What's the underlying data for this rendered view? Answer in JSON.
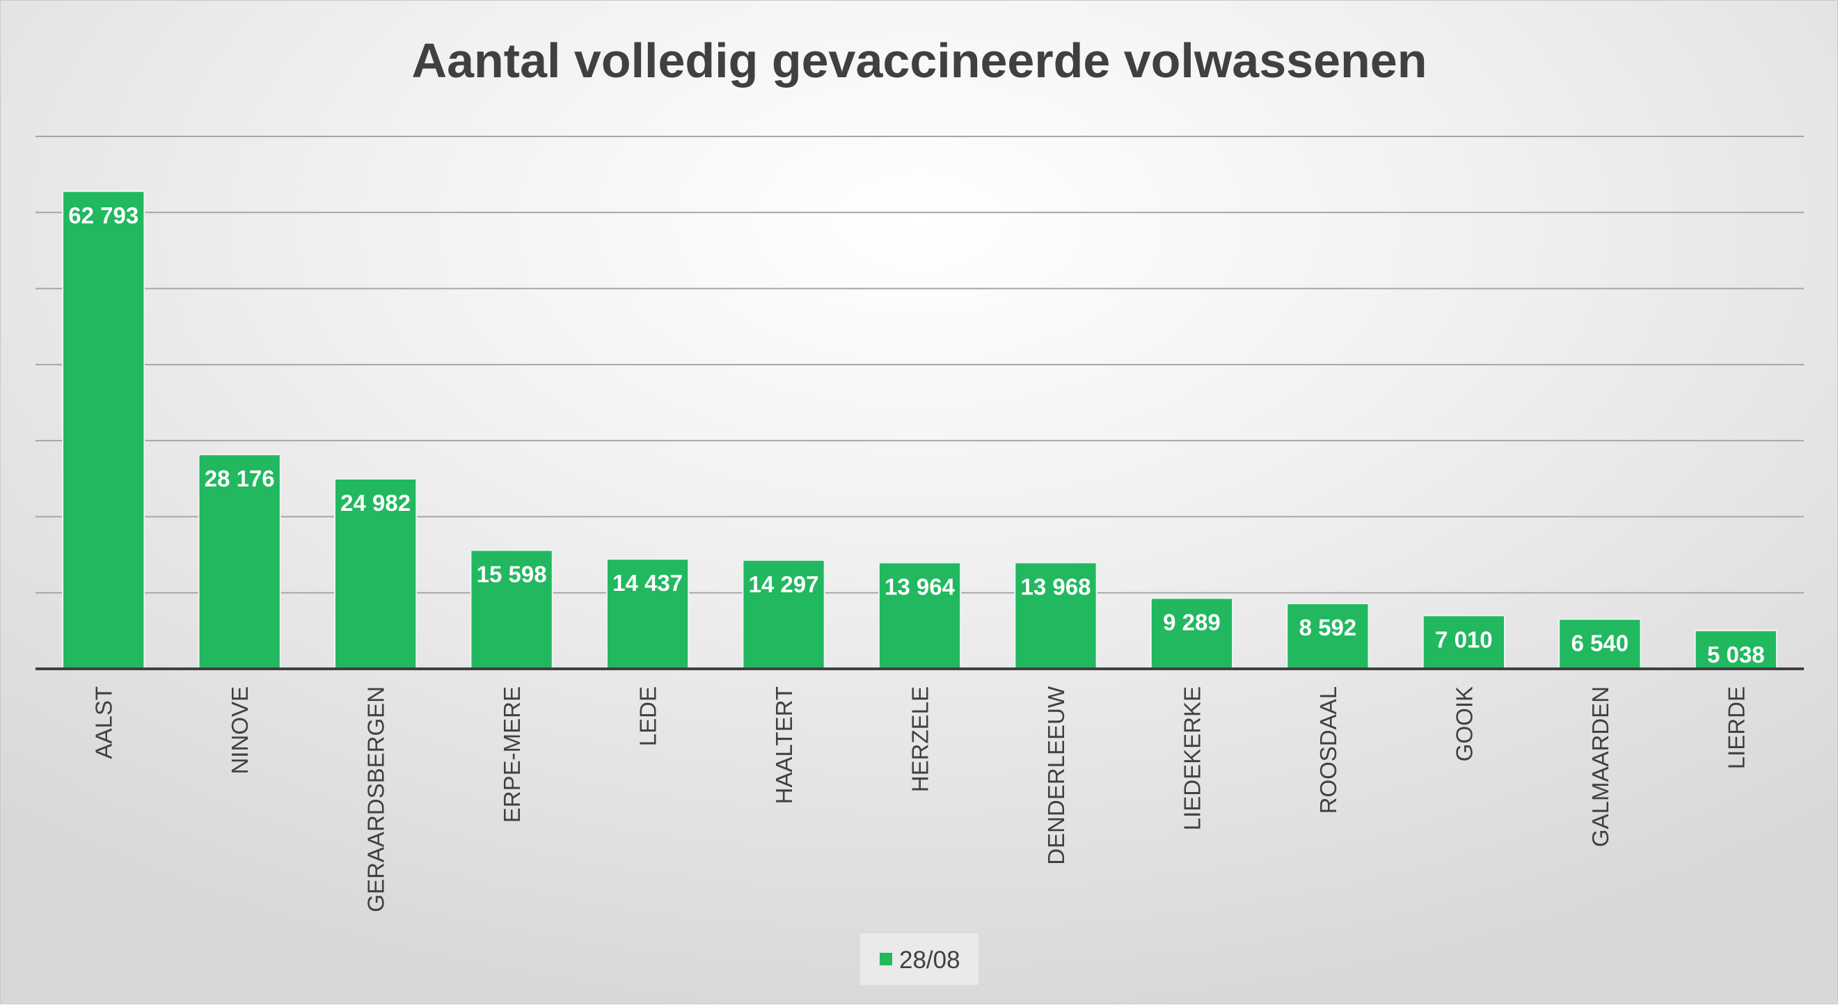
{
  "chart_data": {
    "type": "bar",
    "title": "Aantal volledig gevaccineerde volwassenen",
    "xlabel": "",
    "ylabel": "",
    "ylim": [
      0,
      70000
    ],
    "grid": true,
    "legend_position": "bottom",
    "categories": [
      "AALST",
      "NINOVE",
      "GERAARDSBERGEN",
      "ERPE-MERE",
      "LEDE",
      "HAALTERT",
      "HERZELE",
      "DENDERLEEUW",
      "LIEDEKERKE",
      "ROOSDAAL",
      "GOOIK",
      "GALMAARDEN",
      "LIERDE"
    ],
    "series": [
      {
        "name": "28/08",
        "values": [
          62793,
          28176,
          24982,
          15598,
          14437,
          14297,
          13964,
          13968,
          9289,
          8592,
          7010,
          6540,
          5038
        ],
        "labels": [
          "62 793",
          "28 176",
          "24 982",
          "15 598",
          "14 437",
          "14 297",
          "13 964",
          "13 968",
          "9 289",
          "8 592",
          "7 010",
          "6 540",
          "5 038"
        ]
      }
    ]
  },
  "colors": {
    "bar": "#21b860",
    "grid": "#a6a6a6",
    "axis": "#404040",
    "text": "#404040"
  }
}
